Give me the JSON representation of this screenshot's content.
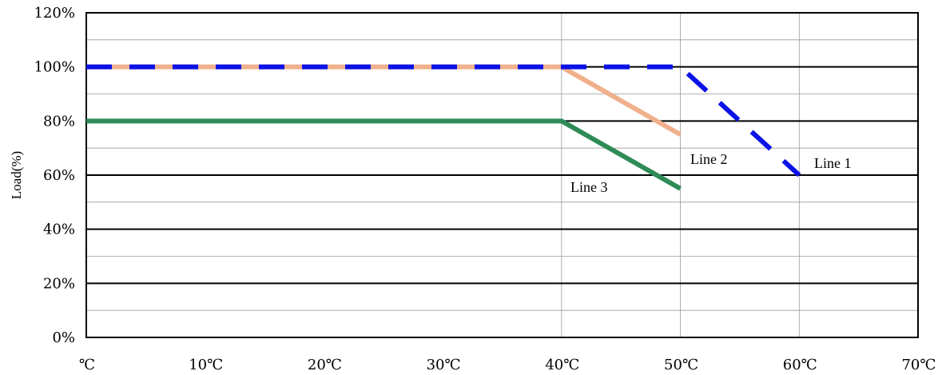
{
  "chart_data": {
    "type": "line",
    "title": "",
    "xlabel": "",
    "ylabel": "Load(%)",
    "xlim": [
      0,
      70
    ],
    "ylim": [
      0,
      120
    ],
    "x_ticks": [
      0,
      10,
      20,
      30,
      40,
      50,
      60,
      70
    ],
    "x_tick_labels": [
      "℃",
      "10℃",
      "20℃",
      "30℃",
      "40℃",
      "50℃",
      "60℃",
      "70℃"
    ],
    "y_ticks": [
      0,
      20,
      40,
      60,
      80,
      100,
      120
    ],
    "y_tick_labels": [
      "0%",
      "20%",
      "40%",
      "60%",
      "80%",
      "100%",
      "120%"
    ],
    "grid": "horizontal major lines with lighter minor lines; light vertical lines at 40, 50, 60",
    "legend": "none; series labeled inline",
    "series": [
      {
        "name": "Line 1",
        "color": "#0a12e6",
        "style": "dashed",
        "x": [
          0,
          40,
          50,
          60
        ],
        "y": [
          100,
          100,
          100,
          60
        ]
      },
      {
        "name": "Line 2",
        "color": "#f0b08c",
        "style": "solid",
        "x": [
          0,
          40,
          50
        ],
        "y": [
          100,
          100,
          75
        ]
      },
      {
        "name": "Line 3",
        "color": "#2e8b57",
        "style": "solid",
        "x": [
          0,
          40,
          50
        ],
        "y": [
          80,
          80,
          55
        ]
      }
    ]
  }
}
